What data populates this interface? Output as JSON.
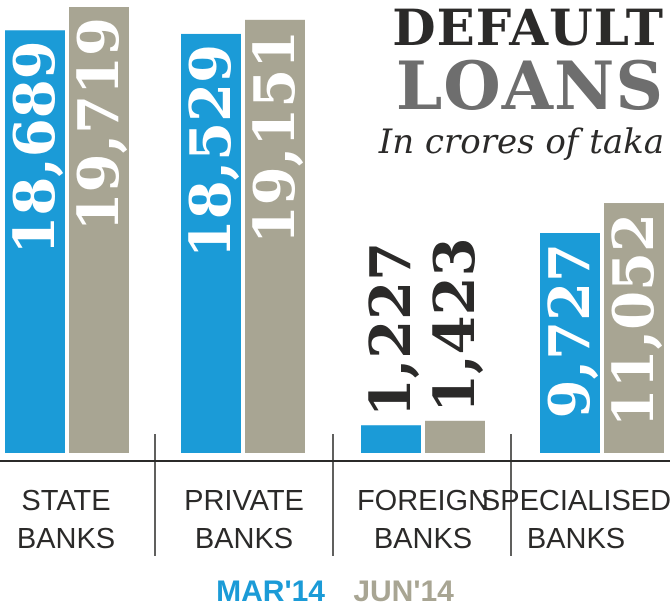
{
  "title_line1": "DEFAULT",
  "title_line2": "LOANS",
  "subtitle": "In crores of taka",
  "legend": [
    {
      "label": "MAR'14",
      "color": "#1b9bd7"
    },
    {
      "label": "JUN'14",
      "color": "#a8a593"
    }
  ],
  "chart_data": {
    "type": "bar",
    "categories": [
      [
        "STATE",
        "BANKS"
      ],
      [
        "PRIVATE",
        "BANKS"
      ],
      [
        "FOREIGN",
        "BANKS"
      ],
      [
        "SPECIALISED",
        "BANKS"
      ]
    ],
    "series": [
      {
        "name": "MAR'14",
        "color": "#1b9bd7",
        "values": [
          18689,
          18529,
          1227,
          9727
        ],
        "labels": [
          "18,689",
          "18,529",
          "1,227",
          "9,727"
        ]
      },
      {
        "name": "JUN'14",
        "color": "#a8a593",
        "values": [
          19719,
          19151,
          1423,
          11052
        ],
        "labels": [
          "19,719",
          "19,151",
          "1,423",
          "11,052"
        ]
      }
    ],
    "title": "DEFAULT LOANS",
    "ylabel": "In crores of taka",
    "grid": false,
    "legend_position": "bottom"
  }
}
